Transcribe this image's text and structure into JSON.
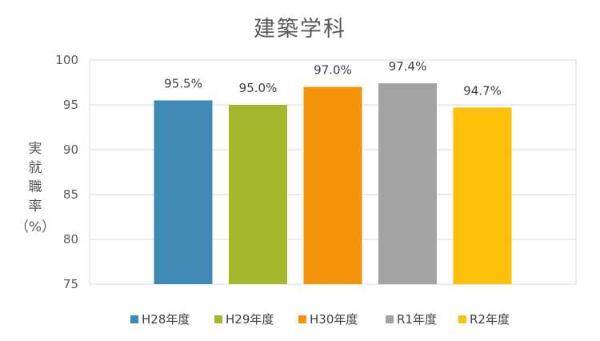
{
  "chart_data": {
    "type": "bar",
    "title": "建築学科",
    "ylabel_chars": [
      "実",
      "就",
      "職",
      "率"
    ],
    "ylabel_unit": "（%）",
    "categories": [
      "H28年度",
      "H29年度",
      "H30年度",
      "R1年度",
      "R2年度"
    ],
    "values": [
      95.5,
      95.0,
      97.0,
      97.4,
      94.7
    ],
    "data_labels": [
      "95.5%",
      "95.0%",
      "97.0%",
      "97.4%",
      "94.7%"
    ],
    "colors": [
      "#3E89B5",
      "#A5B82D",
      "#F2930A",
      "#A3A3A3",
      "#FDC009"
    ],
    "ylim": [
      75,
      100
    ],
    "yticks": [
      75,
      80,
      85,
      90,
      95,
      100
    ],
    "grid": true,
    "legend": "bottom"
  }
}
